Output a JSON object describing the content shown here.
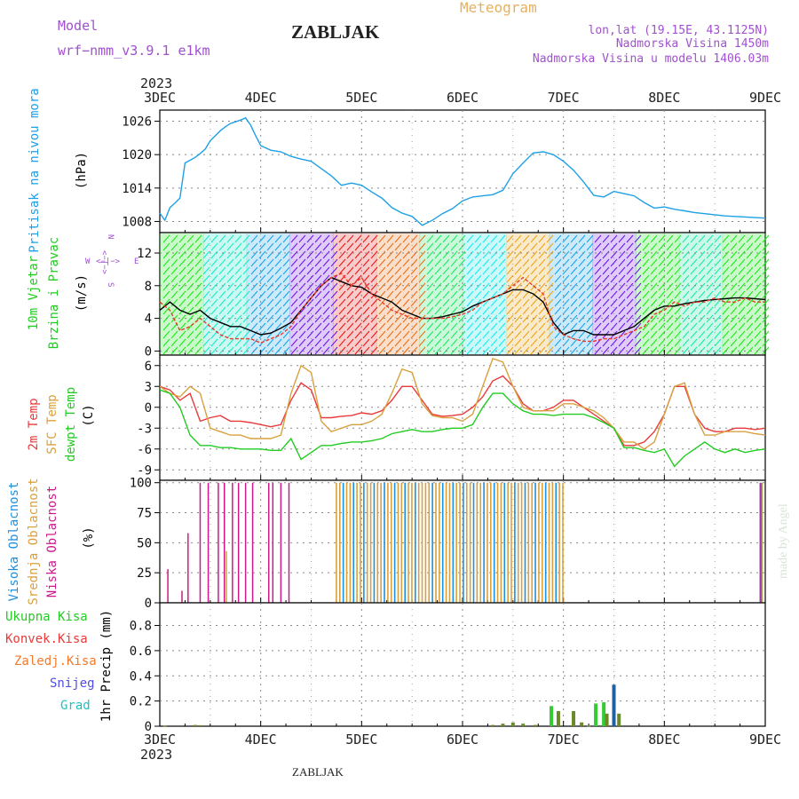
{
  "header": {
    "model_label": "Model",
    "model_name": "wrf−nmm_v3.9.1 e1km",
    "station": "ZABLJAK",
    "product": "Meteogram",
    "coords": "lon,lat (19.15E, 43.1125N)",
    "elevation": "Nadmorska Visina 1450m",
    "model_elevation": "Nadmorska Visina u modelu 1406.03m",
    "footer_station": "ZABLJAK",
    "credit": "made by Angel"
  },
  "colors": {
    "pressure": "#1ea0e6",
    "wind_speed": "#000000",
    "wind_gust": "#e83a2a",
    "temp2m": "#e83a3a",
    "sfc_temp": "#d9a040",
    "dewpt": "#22cc22",
    "cloud_high": "#1e90e0",
    "cloud_mid": "#d9a040",
    "cloud_low": "#cc1a8a",
    "precip_total": "#33cc33",
    "precip_conv": "#e83a3a",
    "precip_frozen": "#f07a2a",
    "snow": "#5050e0",
    "graupel": "#22c0c0",
    "purple_text": "#a050d0",
    "gold_text": "#e6b060",
    "grid": "#888888"
  },
  "time_axis": {
    "year": "2023",
    "ticks": [
      "3DEC",
      "4DEC",
      "5DEC",
      "6DEC",
      "7DEC",
      "8DEC",
      "9DEC"
    ]
  },
  "chart_data": [
    {
      "type": "line",
      "id": "pressure",
      "labels": [
        "Pritisak na nivou mora",
        "(hPa)"
      ],
      "yticks": [
        1008,
        1014,
        1020,
        1026
      ],
      "ylim": [
        1006,
        1028
      ],
      "grid": true,
      "series": [
        {
          "x": [
            0,
            0.05,
            0.1,
            0.15,
            0.2,
            0.25,
            0.3,
            0.35,
            0.4,
            0.45,
            0.5,
            0.55,
            0.6,
            0.65,
            0.7,
            0.75,
            0.8,
            0.85,
            0.9,
            0.95,
            1,
            1.1,
            1.2,
            1.3,
            1.4,
            1.5,
            1.6,
            1.7,
            1.8,
            1.9,
            2,
            2.1,
            2.2,
            2.3,
            2.4,
            2.5,
            2.6,
            2.7,
            2.8,
            2.9,
            3,
            3.1,
            3.2,
            3.3,
            3.4,
            3.5,
            3.6,
            3.7,
            3.8,
            3.9,
            4,
            4.1,
            4.2,
            4.3,
            4.4,
            4.5,
            4.6,
            4.7,
            4.8,
            4.9,
            5,
            5.1,
            5.2,
            5.3,
            5.4,
            5.5,
            5.6,
            5.7,
            5.8,
            5.9,
            6
          ],
          "values": [
            1009.5,
            1008.2,
            1010.5,
            1011.3,
            1012.2,
            1018.5,
            1019,
            1019.5,
            1020.2,
            1021,
            1022.5,
            1023.4,
            1024.3,
            1025,
            1025.6,
            1025.9,
            1026.2,
            1026.6,
            1025.3,
            1023.4,
            1021.6,
            1020.8,
            1020.5,
            1019.7,
            1019.2,
            1018.8,
            1017.5,
            1016.2,
            1014.5,
            1014.9,
            1014.5,
            1013.3,
            1012.2,
            1010.5,
            1009.5,
            1008.9,
            1007.3,
            1008.2,
            1009.4,
            1010.3,
            1011.7,
            1012.4,
            1012.6,
            1012.8,
            1013.6,
            1016.6,
            1018.5,
            1020.3,
            1020.5,
            1020.0,
            1018.8,
            1017.2,
            1015.1,
            1012.7,
            1012.4,
            1013.4,
            1013,
            1012.6,
            1011.4,
            1010.4,
            1010.6,
            1010.2,
            1009.9,
            1009.6,
            1009.4,
            1009.2,
            1009,
            1008.9,
            1008.8,
            1008.7,
            1008.6
          ]
        }
      ]
    },
    {
      "type": "line",
      "id": "wind",
      "labels": [
        "10m Vjetar",
        "Brzina i Pravac",
        "(m/s)"
      ],
      "compass": {
        "n": "N",
        "s": "S",
        "e": "E",
        "w": "W",
        "arrow": "<−|−>"
      },
      "yticks": [
        0,
        4,
        8,
        12
      ],
      "ylim": [
        -0.5,
        14.5
      ],
      "grid": true,
      "series": [
        {
          "name": "speed",
          "x": [
            0,
            0.1,
            0.2,
            0.3,
            0.4,
            0.5,
            0.6,
            0.7,
            0.8,
            0.9,
            1,
            1.1,
            1.2,
            1.3,
            1.4,
            1.5,
            1.6,
            1.7,
            1.8,
            1.9,
            2,
            2.1,
            2.2,
            2.3,
            2.4,
            2.5,
            2.6,
            2.7,
            2.8,
            2.9,
            3,
            3.1,
            3.2,
            3.3,
            3.4,
            3.5,
            3.6,
            3.7,
            3.8,
            3.9,
            4,
            4.1,
            4.2,
            4.3,
            4.4,
            4.5,
            4.6,
            4.7,
            4.8,
            4.9,
            5,
            5.1,
            5.2,
            5.3,
            5.4,
            5.5,
            5.6,
            5.7,
            5.8,
            5.9,
            6
          ],
          "values": [
            5,
            6,
            5,
            4.5,
            5,
            4,
            3.5,
            3,
            3,
            2.5,
            2,
            2.2,
            2.8,
            3.5,
            5,
            6.5,
            8,
            9,
            8.5,
            8,
            7.8,
            7,
            6.5,
            6,
            5,
            4.5,
            4,
            4,
            4.2,
            4.5,
            4.8,
            5.5,
            6,
            6.5,
            7,
            7.5,
            7.5,
            7,
            6,
            3.5,
            2,
            2.5,
            2.5,
            2,
            2,
            2,
            2.5,
            3,
            4,
            5,
            5.5,
            5.5,
            5.8,
            6,
            6.2,
            6.3,
            6.4,
            6.5,
            6.5,
            6.4,
            6.3
          ]
        },
        {
          "name": "gust",
          "x": [
            0,
            0.1,
            0.2,
            0.3,
            0.4,
            0.5,
            0.6,
            0.7,
            0.8,
            0.9,
            1,
            1.1,
            1.2,
            1.3,
            1.4,
            1.5,
            1.6,
            1.7,
            1.8,
            1.9,
            2,
            2.1,
            2.2,
            2.3,
            2.4,
            2.5,
            2.6,
            2.7,
            2.8,
            2.9,
            3,
            3.1,
            3.2,
            3.3,
            3.4,
            3.5,
            3.6,
            3.7,
            3.8,
            3.9,
            4,
            4.1,
            4.2,
            4.3,
            4.4,
            4.5,
            4.6,
            4.7,
            4.8,
            4.9,
            5,
            5.1,
            5.2,
            5.3,
            5.4,
            5.5,
            5.6,
            5.7,
            5.8,
            5.9,
            6
          ],
          "values": [
            6,
            5,
            2.5,
            3,
            4,
            3,
            2,
            1.5,
            1.5,
            1.5,
            1,
            1.5,
            2,
            3,
            5,
            6.5,
            8,
            9,
            9.5,
            8,
            9,
            7,
            6,
            5,
            4.5,
            4,
            4,
            4,
            4,
            4.2,
            4.5,
            5,
            6,
            6.5,
            7,
            8,
            9,
            8,
            7,
            3,
            2,
            1.5,
            1.2,
            1.2,
            1.5,
            1.5,
            2,
            2.5,
            3,
            4.5,
            5,
            6,
            5.5,
            6,
            6,
            6.5,
            6,
            6,
            6.5,
            6,
            6
          ]
        }
      ]
    },
    {
      "type": "line",
      "id": "temperature",
      "labels": [
        "2m Temp",
        "SFC Temp",
        "dewpt Temp",
        "(C)"
      ],
      "yticks": [
        6,
        3,
        0,
        -3,
        -6,
        -9
      ],
      "ylim": [
        -10.5,
        7.5
      ],
      "grid": true,
      "series": [
        {
          "name": "2m Temp",
          "x": [
            0,
            0.1,
            0.2,
            0.3,
            0.4,
            0.5,
            0.6,
            0.7,
            0.8,
            0.9,
            1,
            1.1,
            1.2,
            1.3,
            1.4,
            1.5,
            1.6,
            1.7,
            1.8,
            1.9,
            2,
            2.1,
            2.2,
            2.3,
            2.4,
            2.5,
            2.6,
            2.7,
            2.8,
            2.9,
            3,
            3.1,
            3.2,
            3.3,
            3.4,
            3.5,
            3.6,
            3.7,
            3.8,
            3.9,
            4,
            4.1,
            4.2,
            4.3,
            4.4,
            4.5,
            4.6,
            4.7,
            4.8,
            4.9,
            5,
            5.1,
            5.2,
            5.3,
            5.4,
            5.5,
            5.6,
            5.7,
            5.8,
            5.9,
            6
          ],
          "values": [
            3,
            2.5,
            1,
            2,
            -2,
            -1.5,
            -1.2,
            -2,
            -2,
            -2.2,
            -2.5,
            -2.8,
            -2.5,
            1,
            3.5,
            2.5,
            -1.5,
            -1.5,
            -1.3,
            -1.2,
            -0.8,
            -1,
            -0.5,
            1,
            3,
            3,
            1,
            -1,
            -1.3,
            -1.2,
            -1,
            0,
            1.5,
            3.8,
            4.5,
            3,
            0.5,
            -0.5,
            -0.5,
            0,
            1,
            1,
            0,
            -1,
            -2,
            -3,
            -5.5,
            -5.5,
            -5,
            -3.5,
            -1,
            3,
            3,
            -1,
            -3,
            -3.5,
            -3.5,
            -3,
            -3,
            -3.2,
            -3
          ]
        },
        {
          "name": "SFC Temp",
          "x": [
            0,
            0.1,
            0.2,
            0.3,
            0.4,
            0.5,
            0.6,
            0.7,
            0.8,
            0.9,
            1,
            1.1,
            1.2,
            1.3,
            1.4,
            1.5,
            1.6,
            1.7,
            1.8,
            1.9,
            2,
            2.1,
            2.2,
            2.3,
            2.4,
            2.5,
            2.6,
            2.7,
            2.8,
            2.9,
            3,
            3.1,
            3.2,
            3.3,
            3.4,
            3.5,
            3.6,
            3.7,
            3.8,
            3.9,
            4,
            4.1,
            4.2,
            4.3,
            4.4,
            4.5,
            4.6,
            4.7,
            4.8,
            4.9,
            5,
            5.1,
            5.2,
            5.3,
            5.4,
            5.5,
            5.6,
            5.7,
            5.8,
            5.9,
            6
          ],
          "values": [
            3,
            2,
            1.5,
            3,
            2,
            -3,
            -3.5,
            -4,
            -4,
            -4.5,
            -4.5,
            -4.5,
            -4,
            2,
            6,
            5,
            -2,
            -3.5,
            -3,
            -2.5,
            -2.5,
            -2,
            -1,
            2,
            5.5,
            5,
            0.5,
            -1.2,
            -1.5,
            -1.5,
            -2,
            -1,
            3,
            7,
            6.5,
            3,
            0,
            -0.5,
            -0.5,
            -0.5,
            0.5,
            0.5,
            0,
            -0.5,
            -1.5,
            -3,
            -5,
            -5,
            -6,
            -5,
            -1,
            3,
            3.5,
            -1,
            -4,
            -4,
            -3.5,
            -3.5,
            -3.5,
            -3.8,
            -4
          ]
        },
        {
          "name": "dewpt Temp",
          "x": [
            0,
            0.1,
            0.2,
            0.3,
            0.4,
            0.5,
            0.6,
            0.7,
            0.8,
            0.9,
            1,
            1.1,
            1.2,
            1.3,
            1.4,
            1.5,
            1.6,
            1.7,
            1.8,
            1.9,
            2,
            2.1,
            2.2,
            2.3,
            2.4,
            2.5,
            2.6,
            2.7,
            2.8,
            2.9,
            3,
            3.1,
            3.2,
            3.3,
            3.4,
            3.5,
            3.6,
            3.7,
            3.8,
            3.9,
            4,
            4.1,
            4.2,
            4.3,
            4.4,
            4.5,
            4.6,
            4.7,
            4.8,
            4.9,
            5,
            5.1,
            5.2,
            5.3,
            5.4,
            5.5,
            5.6,
            5.7,
            5.8,
            5.9,
            6
          ],
          "values": [
            2.5,
            2,
            0,
            -4,
            -5.5,
            -5.5,
            -5.8,
            -5.8,
            -6,
            -6,
            -6,
            -6.2,
            -6.2,
            -4.5,
            -7.5,
            -6.5,
            -5.5,
            -5.5,
            -5.2,
            -5,
            -5,
            -4.8,
            -4.5,
            -3.8,
            -3.5,
            -3.2,
            -3.5,
            -3.5,
            -3.2,
            -3,
            -3,
            -2.5,
            0,
            2,
            2,
            0.5,
            -0.5,
            -1,
            -1,
            -1.2,
            -1,
            -1,
            -1,
            -1.5,
            -2.2,
            -3,
            -5.8,
            -5.8,
            -6.2,
            -6.5,
            -6,
            -8.5,
            -7,
            -6,
            -5,
            -6,
            -6.5,
            -6,
            -6.5,
            -6.2,
            -6
          ]
        }
      ]
    },
    {
      "type": "bar",
      "id": "cloud_cover",
      "labels": [
        "Visoka Oblacnost",
        "Srednja Oblacnost",
        "Niska Oblacnost",
        "(%)"
      ],
      "yticks": [
        0,
        25,
        50,
        75,
        100
      ],
      "ylim": [
        0,
        102
      ],
      "grid": true,
      "series": [
        {
          "name": "Niska Oblacnost",
          "x": [
            0.08,
            0.22,
            0.28,
            0.4,
            0.48,
            0.58,
            0.64,
            0.72,
            0.78,
            0.85,
            0.92,
            1.08,
            1.12,
            1.2,
            1.28,
            5.5,
            5.58,
            5.65,
            5.92,
            5.95,
            1.25
          ],
          "values": [
            28,
            10,
            58,
            100,
            100,
            100,
            100,
            100,
            100,
            100,
            100,
            100,
            100,
            100,
            100,
            0,
            0,
            0,
            0,
            100,
            0
          ]
        },
        {
          "name": "Srednja Oblacnost",
          "x": [
            0.66,
            1.0,
            5.97
          ],
          "values": [
            43,
            0,
            100
          ]
        },
        {
          "name": "Visoka Oblacnost",
          "x": [
            5.96
          ],
          "values": [
            100
          ]
        }
      ]
    },
    {
      "type": "bar",
      "id": "precip",
      "labels": [
        "Ukupna Kisa",
        "Konvek.Kisa",
        "Zaledj.Kisa",
        "Snijeg",
        "Grad",
        "1hr Precip (mm)"
      ],
      "yticks": [
        0,
        0.2,
        0.4,
        0.6,
        0.8
      ],
      "ylim": [
        0,
        0.98
      ],
      "grid": true,
      "series": [
        {
          "name": "Ukupna Kisa",
          "x": [
            0.05,
            0.35,
            0.4,
            3.3,
            3.4,
            3.5,
            3.6,
            3.72,
            3.88,
            3.95,
            4.1,
            4.18,
            4.25,
            4.32,
            4.4,
            4.43,
            4.5,
            4.55
          ],
          "values": [
            0.005,
            0.01,
            0.008,
            0.01,
            0.02,
            0.03,
            0.02,
            0.01,
            0.16,
            0.12,
            0.12,
            0.03,
            0.005,
            0.18,
            0.19,
            0.1,
            0.33,
            0.1
          ]
        }
      ]
    }
  ]
}
